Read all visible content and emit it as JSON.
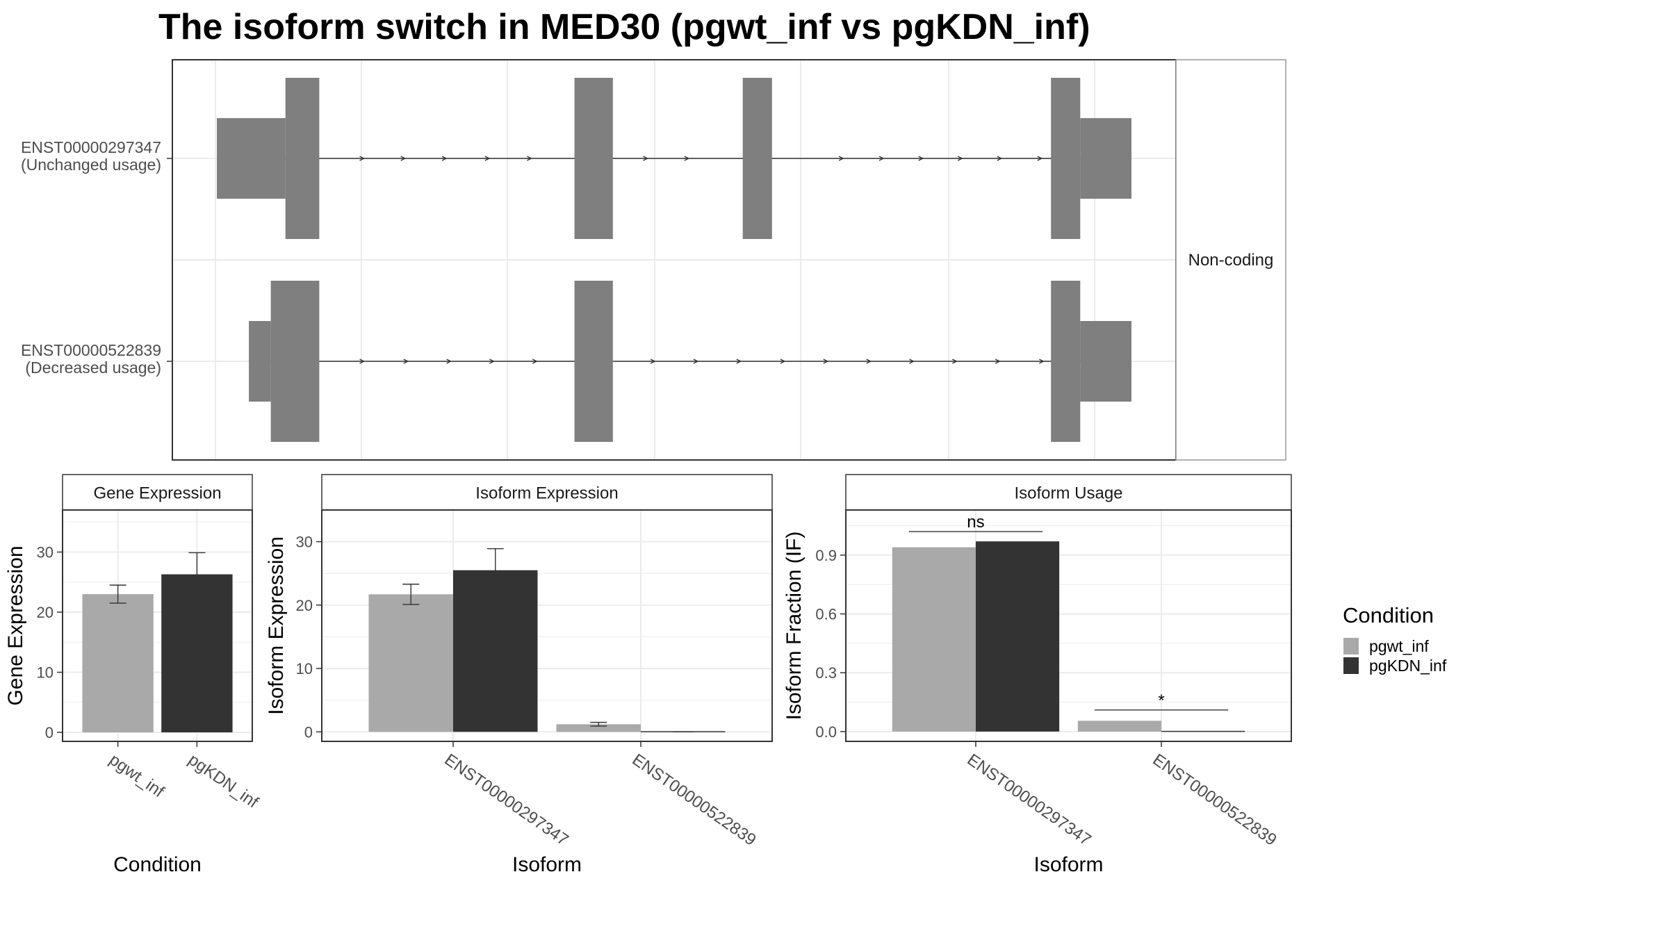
{
  "title": "The isoform switch in MED30 (pgwt_inf vs pgKDN_inf)",
  "colors": {
    "exon": "#7f7f7f",
    "pgwt_inf": "#a9a9a9",
    "pgKDN_inf": "#333333",
    "grid": "#ebebeb",
    "strip_bg": "#ffffff",
    "border": "#333333"
  },
  "structure_panel": {
    "strip_label": "Non-coding",
    "isoforms": [
      {
        "id": "ENST00000297347",
        "usage_label": "(Unchanged usage)",
        "exons": [
          {
            "start": 0.0,
            "end": 0.075,
            "type": "utr"
          },
          {
            "start": 0.075,
            "end": 0.112,
            "type": "cds"
          },
          {
            "start": 0.391,
            "end": 0.433,
            "type": "cds"
          },
          {
            "start": 0.575,
            "end": 0.607,
            "type": "cds"
          },
          {
            "start": 0.912,
            "end": 0.944,
            "type": "cds"
          },
          {
            "start": 0.944,
            "end": 1.0,
            "type": "utr"
          }
        ],
        "arrows": [
          0.16,
          0.205,
          0.25,
          0.297,
          0.343,
          0.47,
          0.515,
          0.684,
          0.728,
          0.771,
          0.814,
          0.857,
          0.901
        ]
      },
      {
        "id": "ENST00000522839",
        "usage_label": "(Decreased usage)",
        "exons": [
          {
            "start": 0.035,
            "end": 0.059,
            "type": "utr"
          },
          {
            "start": 0.059,
            "end": 0.112,
            "type": "cds"
          },
          {
            "start": 0.391,
            "end": 0.433,
            "type": "cds"
          },
          {
            "start": 0.912,
            "end": 0.944,
            "type": "cds"
          },
          {
            "start": 0.944,
            "end": 1.0,
            "type": "utr"
          }
        ],
        "arrows": [
          0.16,
          0.208,
          0.255,
          0.302,
          0.349,
          0.478,
          0.525,
          0.572,
          0.62,
          0.667,
          0.714,
          0.761,
          0.808,
          0.855,
          0.903
        ]
      }
    ]
  },
  "chart_data": [
    {
      "type": "bar",
      "strip": "Gene Expression",
      "xlabel": "Condition",
      "ylabel": "Gene Expression",
      "categories": [
        "pgwt_inf",
        "pgKDN_inf"
      ],
      "ylim": [
        -1.5,
        37
      ],
      "yticks": [
        0,
        10,
        20,
        30
      ],
      "series": [
        {
          "name": "pgwt_inf",
          "values": [
            23.0,
            null
          ],
          "errors": [
            1.5,
            null
          ]
        },
        {
          "name": "pgKDN_inf",
          "values": [
            null,
            26.3
          ],
          "errors": [
            null,
            3.6
          ]
        }
      ]
    },
    {
      "type": "bar",
      "strip": "Isoform Expression",
      "xlabel": "Isoform",
      "ylabel": "Isoform Expression",
      "categories": [
        "ENST00000297347",
        "ENST00000522839"
      ],
      "ylim": [
        -1.5,
        35
      ],
      "yticks": [
        0,
        10,
        20,
        30
      ],
      "series": [
        {
          "name": "pgwt_inf",
          "values": [
            21.7,
            1.2
          ],
          "errors": [
            1.6,
            0.3
          ]
        },
        {
          "name": "pgKDN_inf",
          "values": [
            25.5,
            0.0
          ],
          "errors": [
            3.4,
            0.0
          ]
        }
      ]
    },
    {
      "type": "bar",
      "strip": "Isoform Usage",
      "xlabel": "Isoform",
      "ylabel": "Isoform Fraction (IF)",
      "categories": [
        "ENST00000297347",
        "ENST00000522839"
      ],
      "ylim": [
        -0.05,
        1.13
      ],
      "yticks": [
        0.0,
        0.3,
        0.6,
        0.9
      ],
      "ytick_labels": [
        "0.0",
        "0.3",
        "0.6",
        "0.9"
      ],
      "series": [
        {
          "name": "pgwt_inf",
          "values": [
            0.94,
            0.055
          ]
        },
        {
          "name": "pgKDN_inf",
          "values": [
            0.97,
            0.0
          ]
        }
      ],
      "significance": [
        {
          "label": "ns",
          "y": 1.02
        },
        {
          "label": "*",
          "y": 0.11
        }
      ]
    }
  ],
  "legend": {
    "title": "Condition",
    "placement": "right",
    "entries": [
      "pgwt_inf",
      "pgKDN_inf"
    ]
  }
}
